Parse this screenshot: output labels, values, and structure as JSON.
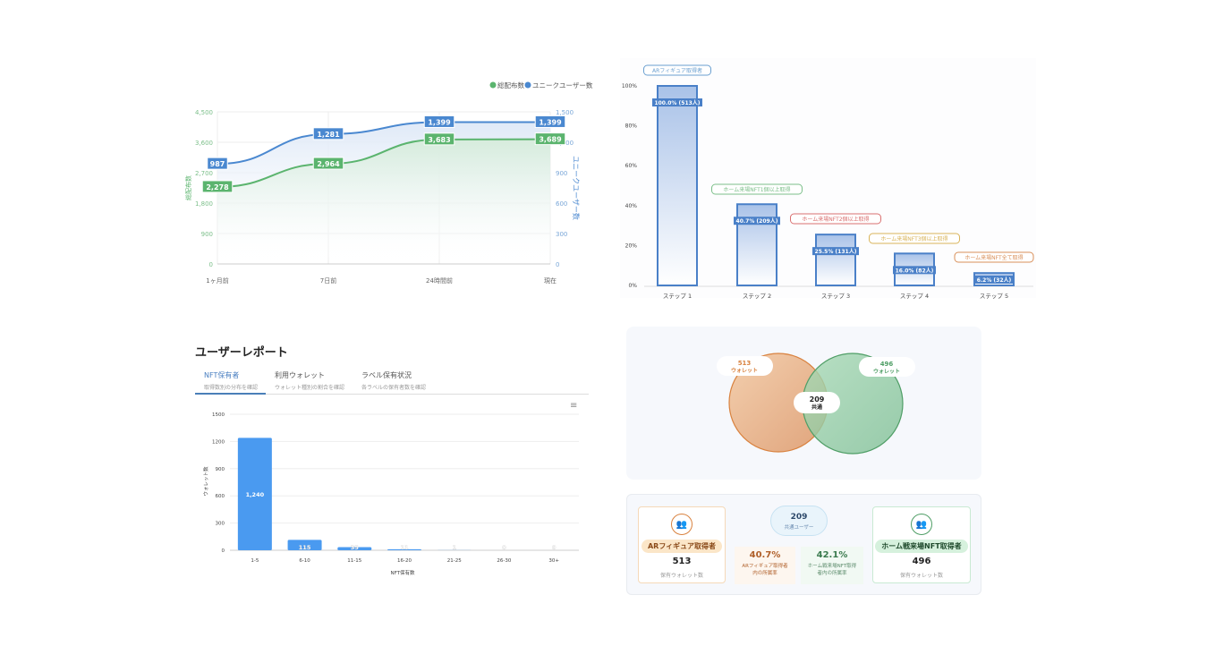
{
  "line_chart": {
    "legend": [
      {
        "name": "総配布数",
        "color": "#5bb46e"
      },
      {
        "name": "ユニークユーザー数",
        "color": "#4a88d0"
      }
    ],
    "left_axis_title": "総配布数",
    "right_axis_title": "ユニークユーザー数",
    "categories": [
      "1ヶ月前",
      "7日前",
      "24時間前",
      "現在"
    ],
    "left_ticks": [
      "0",
      "900",
      "1,800",
      "2,700",
      "3,600",
      "4,500"
    ],
    "right_ticks": [
      "0",
      "300",
      "600",
      "900",
      "1,200",
      "1,500"
    ],
    "left_range": [
      0,
      4500
    ],
    "right_range": [
      0,
      1500
    ],
    "series": [
      {
        "name": "総配布数",
        "axis": "left",
        "values": [
          2278,
          2964,
          3683,
          3689
        ],
        "labels": [
          "2,278",
          "2,964",
          "3,683",
          "3,689"
        ],
        "color": "#5bb46e"
      },
      {
        "name": "ユニークユーザー数",
        "axis": "right",
        "values": [
          987,
          1281,
          1399,
          1399
        ],
        "labels": [
          "987",
          "1,281",
          "1,399",
          "1,399"
        ],
        "color": "#4a88d0"
      }
    ]
  },
  "funnel_chart": {
    "y_ticks": [
      "0%",
      "20%",
      "40%",
      "60%",
      "80%",
      "100%"
    ],
    "categories": [
      "ステップ 1",
      "ステップ 2",
      "ステップ 3",
      "ステップ 4",
      "ステップ 5"
    ],
    "values": [
      100.0,
      40.7,
      25.5,
      16.0,
      6.2
    ],
    "labels": [
      "100.0% (513人)",
      "40.7% (209人)",
      "25.5% (131人)",
      "16.0% (82人)",
      "6.2% (32人)"
    ],
    "annotations": [
      {
        "text": "ARフィギュア取得者",
        "color": "#6a9fd0"
      },
      {
        "text": "ホーム来場NFT1個以上取得",
        "color": "#7cbf8a"
      },
      {
        "text": "ホーム来場NFT2個以上取得",
        "color": "#d97070"
      },
      {
        "text": "ホーム来場NFT3個以上取得",
        "color": "#d9b45a"
      },
      {
        "text": "ホーム来場NFT全て取得",
        "color": "#d9905a"
      }
    ]
  },
  "report": {
    "title": "ユーザーレポート",
    "tabs": [
      {
        "label": "NFT保有者",
        "sub": "取得数別の分布を確認",
        "active": true
      },
      {
        "label": "利用ウォレット",
        "sub": "ウォレット種別の割合を確認"
      },
      {
        "label": "ラベル保有状況",
        "sub": "各ラベルの保有者数を確認"
      }
    ],
    "menu_icon": "hamburger-menu-icon"
  },
  "report_chart": {
    "type": "bar",
    "xlabel": "NFT保有数",
    "ylabel": "ウォレット数",
    "ylim": [
      0,
      1500
    ],
    "y_ticks": [
      "0",
      "300",
      "600",
      "900",
      "1200",
      "1500"
    ],
    "categories": [
      "1-5",
      "6-10",
      "11-15",
      "16-20",
      "21-25",
      "26-30",
      "30+"
    ],
    "values": [
      1240,
      115,
      35,
      11,
      1,
      0,
      0
    ],
    "labels": [
      "1,240",
      "115",
      "35",
      "11",
      "1",
      "0",
      "0"
    ],
    "color": "#4a9af0"
  },
  "venn": {
    "left": {
      "count": "513",
      "unit": "ウォレット",
      "color": "#d9823f"
    },
    "right": {
      "count": "496",
      "unit": "ウォレット",
      "color": "#4f9e66"
    },
    "overlap": {
      "count": "209",
      "unit": "共通"
    }
  },
  "stats": {
    "left": {
      "title": "ARフィギュア取得者",
      "count": "513",
      "label": "保有ウォレット数",
      "icon": "users-icon"
    },
    "right": {
      "title": "ホーム戦来場NFT取得者",
      "count": "496",
      "label": "保有ウォレット数",
      "icon": "users-icon"
    },
    "common": {
      "count": "209",
      "label": "共通ユーザー"
    },
    "rate_left": {
      "value": "40.7%",
      "label": "ARフィギュア取得者内の所属率"
    },
    "rate_right": {
      "value": "42.1%",
      "label": "ホーム戦来場NFT取得者内の所属率"
    }
  }
}
